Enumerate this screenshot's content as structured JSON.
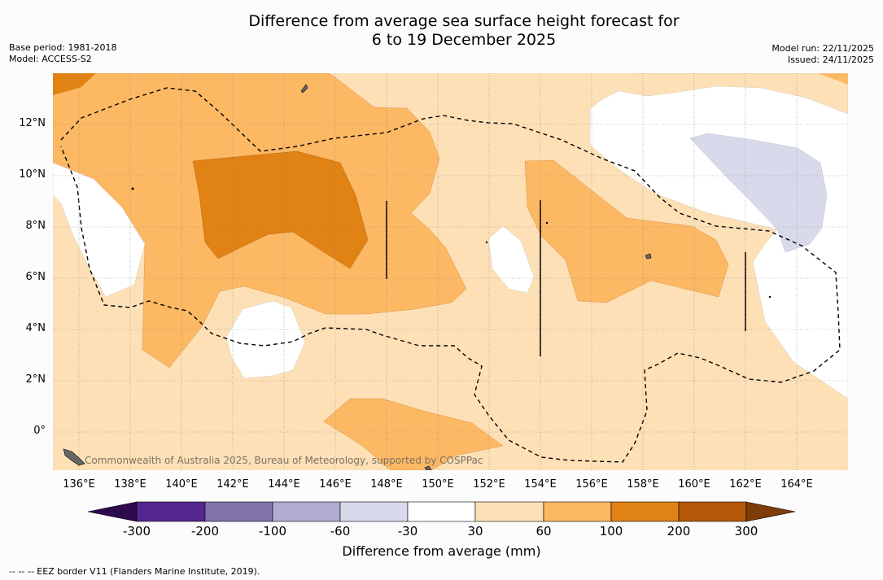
{
  "title": {
    "line1": "Difference from average sea surface height forecast for",
    "line2": "6 to 19 December 2025"
  },
  "meta": {
    "base_period": "Base period: 1981-2018",
    "model": "Model: ACCESS-S2",
    "model_run": "Model run: 22/11/2025",
    "issued": "Issued: 24/11/2025"
  },
  "map": {
    "copyright": "Commonwealth of Australia 2025, Bureau of Meteorology, supported by COSPPac",
    "longitude_labels": [
      "136°E",
      "138°E",
      "140°E",
      "142°E",
      "144°E",
      "146°E",
      "148°E",
      "150°E",
      "152°E",
      "154°E",
      "156°E",
      "158°E",
      "160°E",
      "162°E",
      "164°E"
    ],
    "latitude_labels": [
      "12°N",
      "10°N",
      "8°N",
      "6°N",
      "4°N",
      "2°N",
      "0°"
    ],
    "lon_range": [
      135,
      166
    ],
    "lat_range": [
      -1.5,
      13.8
    ]
  },
  "colorbar": {
    "title": "Difference from average (mm)",
    "tick_labels": [
      "-300",
      "-200",
      "-100",
      "-60",
      "-30",
      "30",
      "60",
      "100",
      "200",
      "300"
    ],
    "colors": {
      "below_min": "#2d0a4e",
      "neg_300_200": "#54278f",
      "neg_200_100": "#8073ac",
      "neg_100_60": "#b2abd2",
      "neg_60_30": "#d8daeb",
      "neutral": "#ffffff",
      "pos_30_60": "#fee0b6",
      "pos_60_100": "#fdb863",
      "pos_100_200": "#e08214",
      "pos_200_300": "#b35806",
      "above_max": "#7f3b08"
    }
  },
  "footnote": "-- -- -- EEZ border V11 (Flanders Marine Institute, 2019)."
}
